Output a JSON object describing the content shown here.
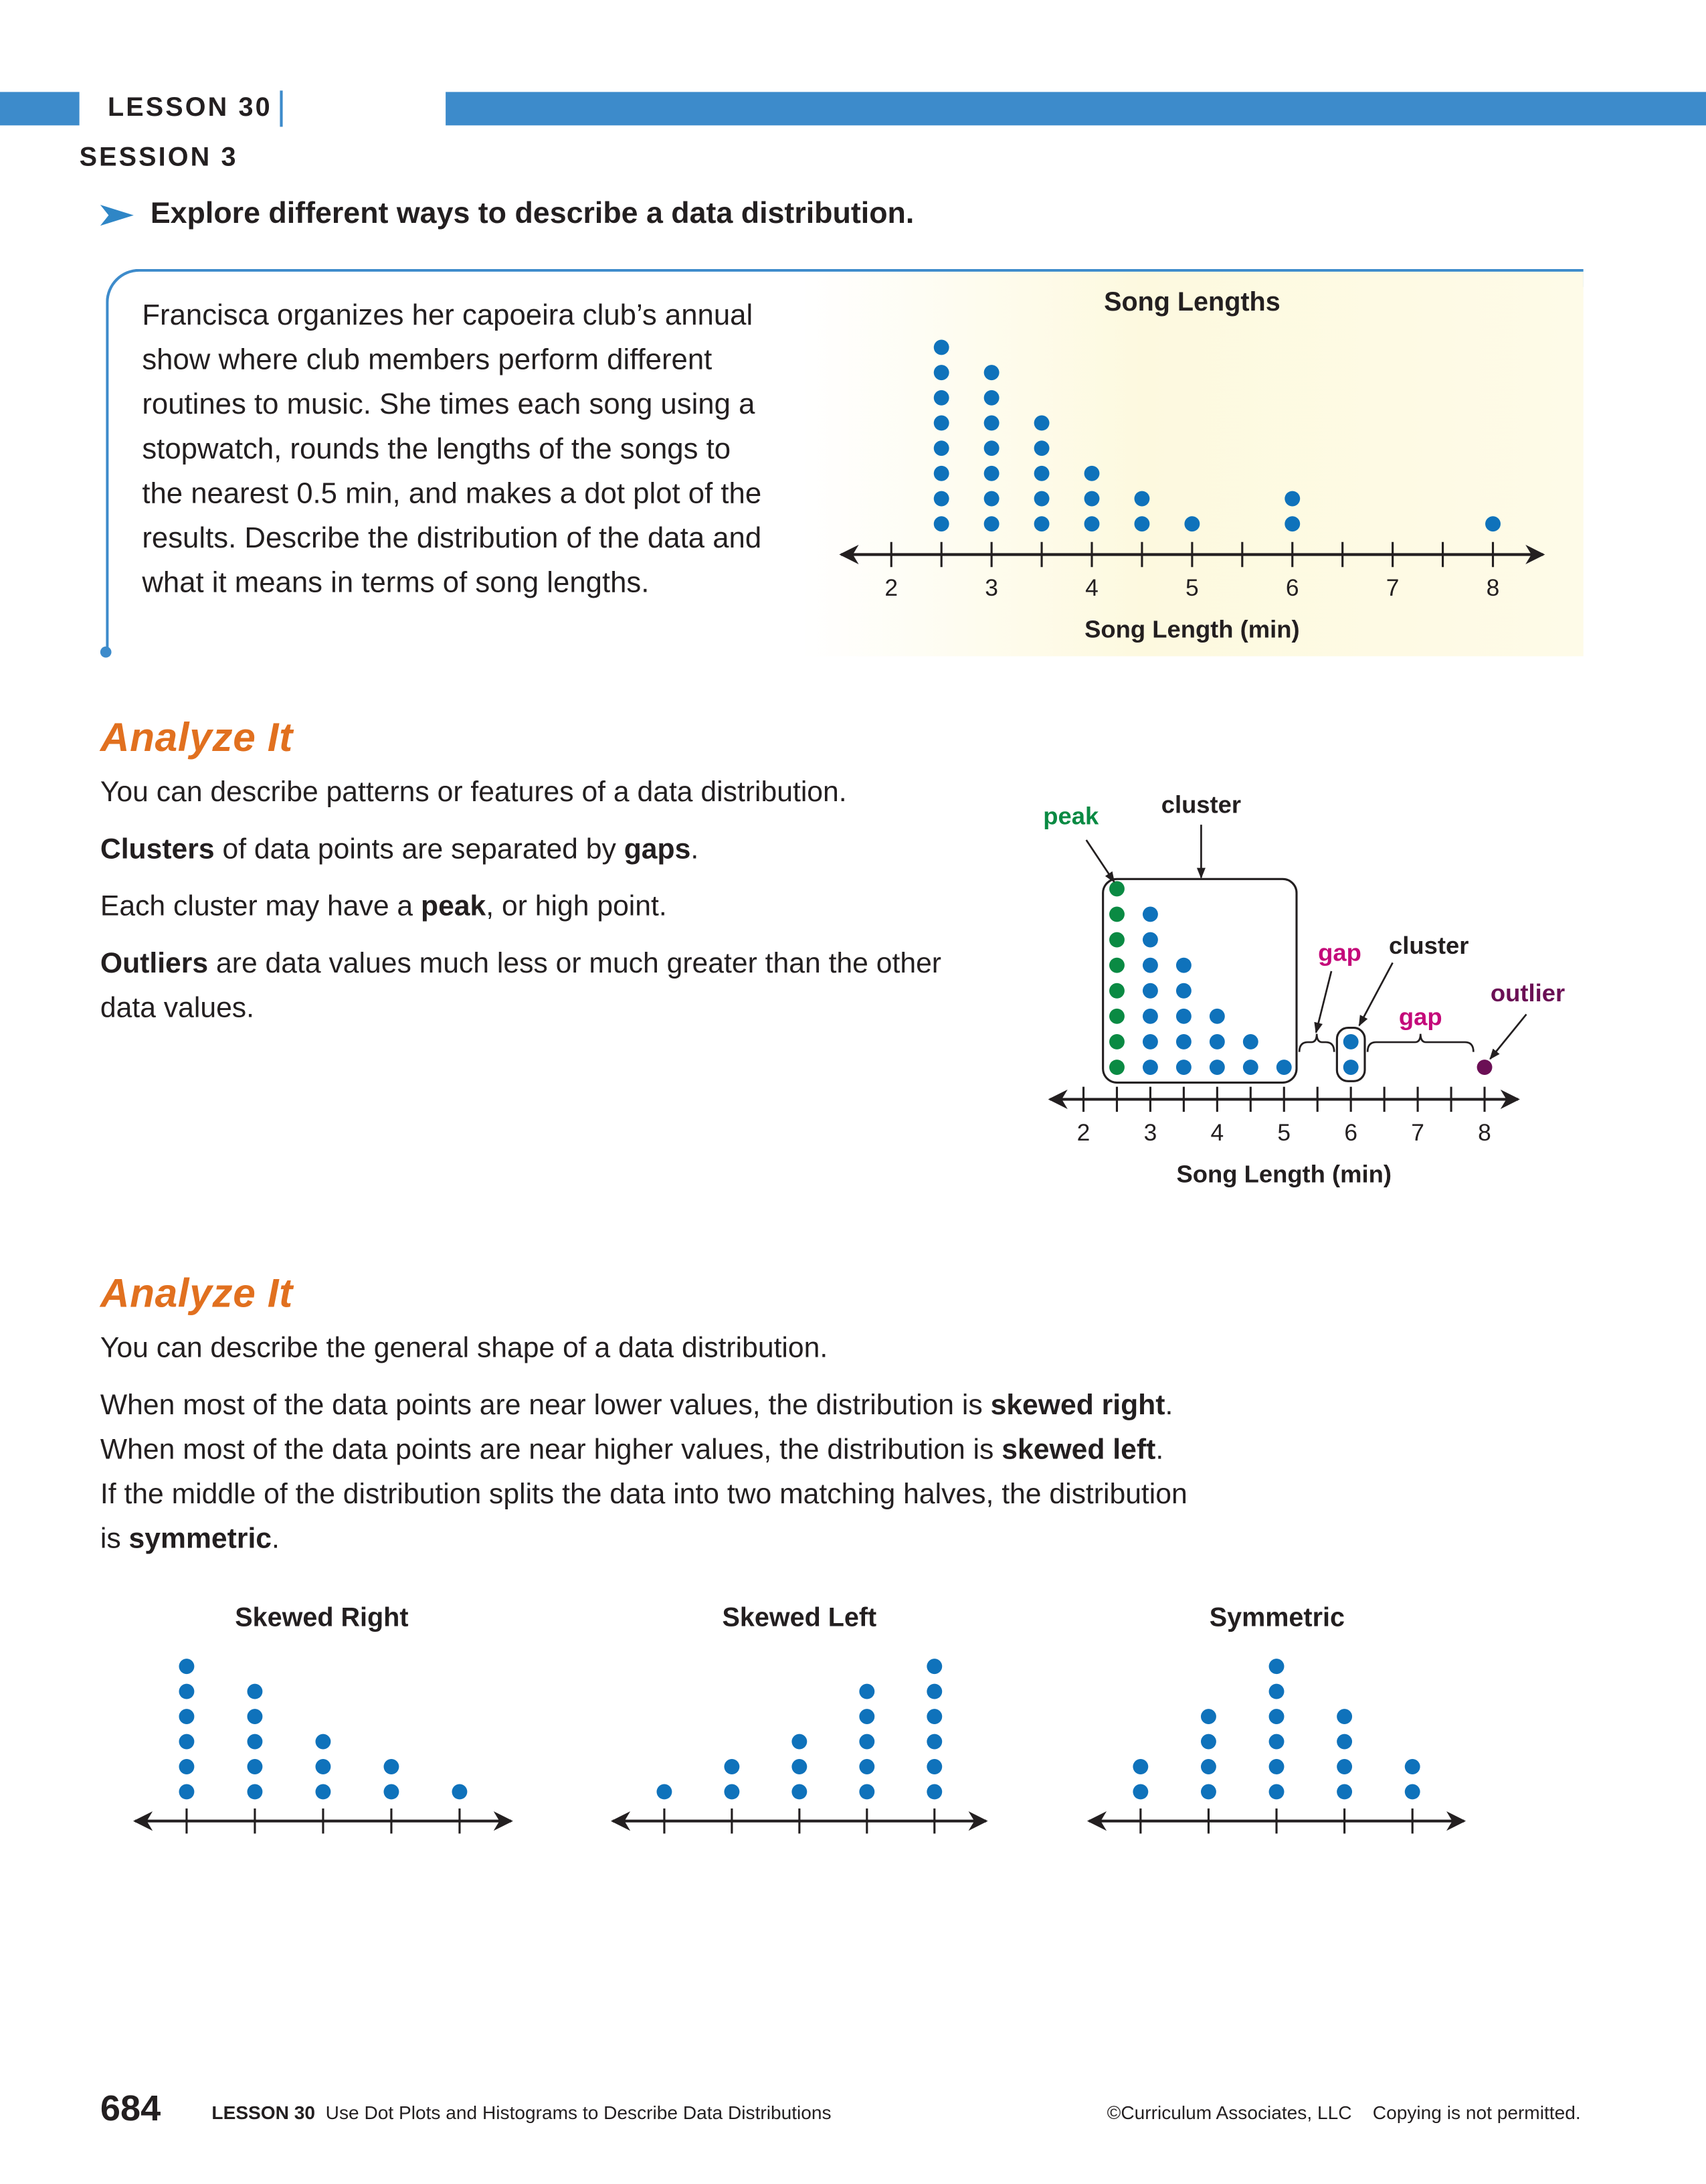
{
  "header": {
    "lesson": "LESSON 30",
    "session": "SESSION 3"
  },
  "explore": {
    "heading": "Explore different ways to describe a data distribution.",
    "problem": "Francisca organizes her capoeira club’s annual show where club members perform different routines to music. She times each song using a stopwatch, rounds the lengths of the songs to the nearest 0.5 min, and makes a dot plot of the results. Describe the distribution of the data and what it means in terms of song lengths."
  },
  "analyze": [
    {
      "heading": "Analyze It",
      "paragraphs": [
        [
          {
            "text": "You can describe patterns or features of a data distribution."
          }
        ],
        [
          {
            "text": "Clusters",
            "bold": true
          },
          {
            "text": " of data points are separated by "
          },
          {
            "text": "gaps",
            "bold": true
          },
          {
            "text": "."
          }
        ],
        [
          {
            "text": "Each cluster may have a "
          },
          {
            "text": "peak",
            "bold": true
          },
          {
            "text": ", or high point."
          }
        ],
        [
          {
            "text": "Outliers",
            "bold": true
          },
          {
            "text": " are data values much less or much greater than the other data values."
          }
        ]
      ]
    },
    {
      "heading": "Analyze It",
      "paragraphs": [
        [
          {
            "text": "You can describe the general shape of a data distribution."
          }
        ],
        [
          {
            "text": "When most of the data points are near lower values, the distribution is "
          },
          {
            "text": "skewed right",
            "bold": true
          },
          {
            "text": "."
          }
        ],
        [
          {
            "text": "When most of the data points are near higher values, the distribution is "
          },
          {
            "text": "skewed left",
            "bold": true
          },
          {
            "text": "."
          }
        ],
        [
          {
            "text": "If the middle of the distribution splits the data into two matching halves, the distribution is "
          },
          {
            "text": "symmetric",
            "bold": true
          },
          {
            "text": "."
          }
        ]
      ]
    }
  ],
  "chart_data": [
    {
      "type": "dot",
      "title": "Song Lengths",
      "x_label": "Song Length (min)",
      "x": [
        2.5,
        3,
        3.5,
        4,
        4.5,
        5,
        6,
        8
      ],
      "values": [
        8,
        7,
        5,
        3,
        2,
        1,
        2,
        1
      ],
      "color": "#0f72bb",
      "xlim": [
        1.5,
        8.5
      ],
      "xticks": [
        2,
        3,
        4,
        5,
        6,
        7,
        8
      ],
      "minor_xticks": [
        2.5,
        3.5,
        4.5,
        5.5,
        6.5,
        7.5
      ]
    },
    {
      "type": "dot",
      "x_label": "Song Length (min)",
      "x": [
        2.5,
        3,
        3.5,
        4,
        4.5,
        5,
        6,
        8
      ],
      "values": [
        8,
        7,
        5,
        3,
        2,
        1,
        2,
        1
      ],
      "color": "#0f72bb",
      "peak_color": "#0a8a43",
      "outlier_color": "#6b0f55",
      "xlim": [
        1.5,
        8.5
      ],
      "xticks": [
        2,
        3,
        4,
        5,
        6,
        7,
        8
      ],
      "minor_xticks": [
        2.5,
        3.5,
        4.5,
        5.5,
        6.5,
        7.5
      ],
      "annotations": [
        {
          "text": "peak",
          "color": "#0a8a43"
        },
        {
          "text": "cluster",
          "color": "#231f20"
        },
        {
          "text": "gap",
          "color": "#c4097a"
        },
        {
          "text": "cluster",
          "color": "#231f20"
        },
        {
          "text": "gap",
          "color": "#c4097a"
        },
        {
          "text": "outlier",
          "color": "#6b0f55"
        }
      ]
    },
    {
      "type": "dot",
      "title": "Skewed Right",
      "values": [
        6,
        5,
        3,
        2,
        1
      ],
      "color": "#0f72bb"
    },
    {
      "type": "dot",
      "title": "Skewed Left",
      "values": [
        1,
        2,
        3,
        5,
        6
      ],
      "color": "#0f72bb"
    },
    {
      "type": "dot",
      "title": "Symmetric",
      "values": [
        2,
        4,
        6,
        4,
        2
      ],
      "color": "#0f72bb"
    }
  ],
  "footer": {
    "page": "684",
    "lesson": "LESSON 30",
    "title": "Use Dot Plots and Histograms to Describe Data Distributions",
    "copyright": "©Curriculum Associates, LLC",
    "notice": "Copying is not permitted."
  }
}
